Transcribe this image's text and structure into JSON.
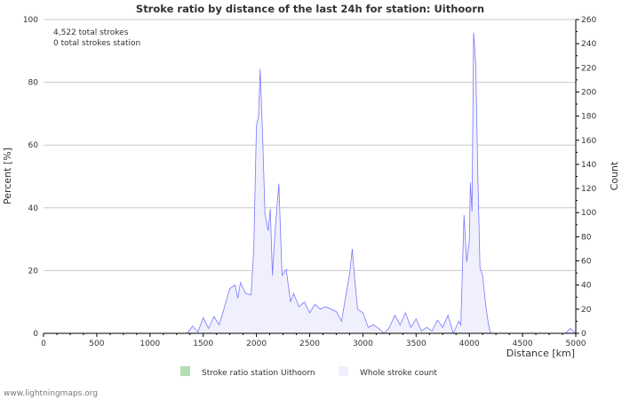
{
  "chart_data": {
    "type": "area",
    "title": "Stroke ratio by distance of the last 24h for station: Uithoorn",
    "annotations": [
      "4,522 total strokes",
      "0 total strokes station"
    ],
    "xlabel": "Distance   [km]",
    "ylabel_left": "Percent   [%]",
    "ylabel_right": "Count",
    "xlim": [
      0,
      5000
    ],
    "ylim_left": [
      0,
      100
    ],
    "ylim_right": [
      0,
      260
    ],
    "x_ticks": [
      0,
      500,
      1000,
      1500,
      2000,
      2500,
      3000,
      3500,
      4000,
      4500,
      5000
    ],
    "y_left_ticks": [
      0,
      20,
      40,
      60,
      80,
      100
    ],
    "y_right_ticks": [
      0,
      20,
      40,
      60,
      80,
      100,
      120,
      140,
      160,
      180,
      200,
      220,
      240,
      260
    ],
    "grid": true,
    "legend_position": "bottom",
    "series": [
      {
        "name": "Stroke ratio station Uithoorn",
        "axis": "left",
        "color": "#b3e0b3",
        "x": [
          0,
          5000
        ],
        "values": [
          0,
          0
        ]
      },
      {
        "name": "Whole stroke count",
        "axis": "right",
        "color": "#7777ff",
        "fill": "#f0f0fc",
        "x": [
          1350,
          1400,
          1450,
          1500,
          1550,
          1600,
          1650,
          1700,
          1750,
          1800,
          1825,
          1850,
          1900,
          1950,
          1975,
          2000,
          2020,
          2035,
          2060,
          2080,
          2110,
          2130,
          2150,
          2175,
          2210,
          2240,
          2280,
          2320,
          2350,
          2400,
          2450,
          2500,
          2550,
          2600,
          2650,
          2750,
          2800,
          2830,
          2880,
          2900,
          2920,
          2950,
          3000,
          3050,
          3100,
          3150,
          3200,
          3250,
          3300,
          3350,
          3400,
          3450,
          3500,
          3550,
          3600,
          3650,
          3700,
          3750,
          3800,
          3850,
          3900,
          3920,
          3950,
          3975,
          4000,
          4010,
          4025,
          4040,
          4060,
          4080,
          4100,
          4125,
          4150,
          4180,
          4200,
          4900,
          4950,
          5000
        ],
        "values": [
          0,
          6,
          1,
          13,
          4,
          14,
          7,
          22,
          37,
          40,
          29,
          42,
          33,
          32,
          70,
          172,
          180,
          219,
          158,
          99,
          85,
          103,
          48,
          85,
          124,
          48,
          53,
          26,
          33,
          22,
          26,
          17,
          24,
          20,
          22,
          18,
          10,
          26,
          52,
          70,
          48,
          20,
          17,
          5,
          7,
          4,
          0,
          5,
          15,
          7,
          17,
          5,
          12,
          2,
          5,
          2,
          11,
          5,
          15,
          0,
          10,
          7,
          98,
          59,
          77,
          125,
          101,
          249,
          223,
          129,
          54,
          48,
          26,
          7,
          0,
          0,
          4,
          0
        ]
      }
    ]
  },
  "footer": "www.lightningmaps.org"
}
